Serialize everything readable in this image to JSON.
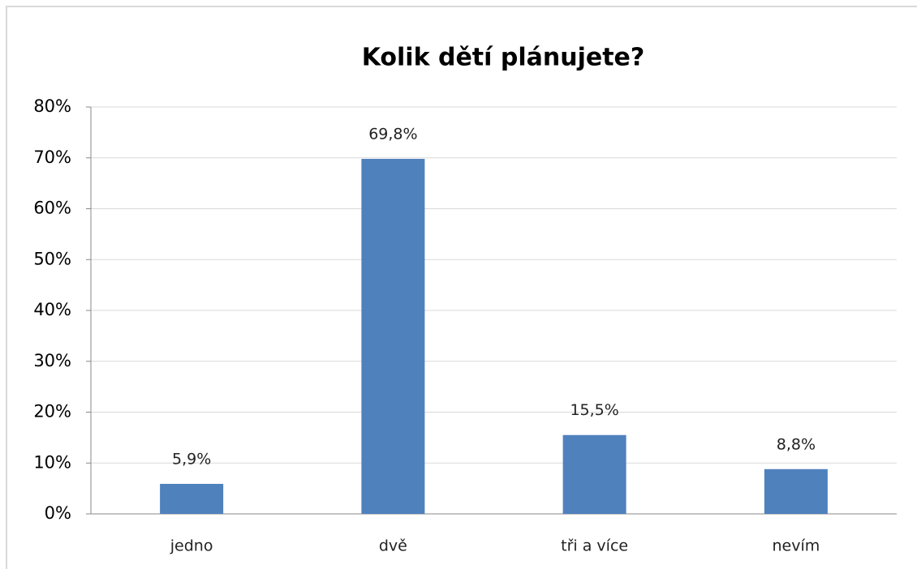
{
  "chart_data": {
    "type": "bar",
    "title": "Kolik dětí plánujete?",
    "categories": [
      "jedno",
      "dvě",
      "tři a více",
      "nevím"
    ],
    "values": [
      5.9,
      69.8,
      15.5,
      8.8
    ],
    "value_labels": [
      "5,9%",
      "69,8%",
      "15,5%",
      "8,8%"
    ],
    "color": "#4f81bd",
    "ylim": [
      0,
      80
    ],
    "yticks": [
      {
        "value": 0,
        "label": "0%"
      },
      {
        "value": 10,
        "label": "10%"
      },
      {
        "value": 20,
        "label": "20%"
      },
      {
        "value": 30,
        "label": "30%"
      },
      {
        "value": 40,
        "label": "40%"
      },
      {
        "value": 50,
        "label": "50%"
      },
      {
        "value": 60,
        "label": "60%"
      },
      {
        "value": 70,
        "label": "70%"
      },
      {
        "value": 80,
        "label": "80%"
      }
    ],
    "grid": true
  }
}
